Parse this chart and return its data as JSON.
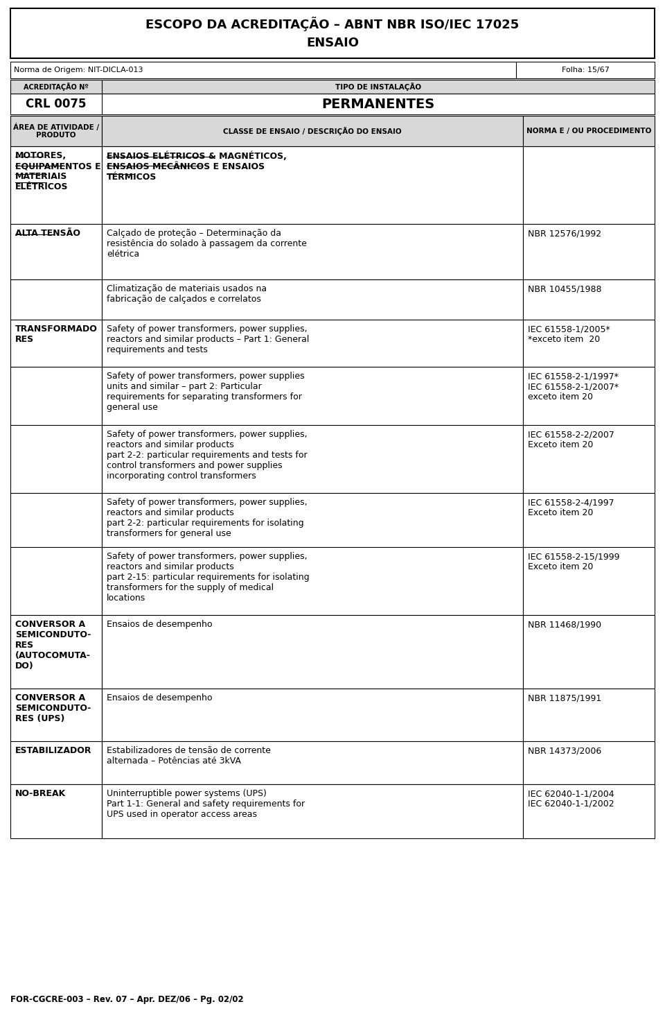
{
  "title_line1": "ESCOPO DA ACREDITAÇÃO – ABNT NBR ISO/IEC 17025",
  "title_line2": "ENSAIO",
  "norma": "Norma de Origem: NIT-DICLA-013",
  "folha": "Folha: 15/67",
  "acreditacao_label": "ACREDITAÇÃO Nº",
  "acreditacao_value": "CRL 0075",
  "tipo_label": "TIPO DE INSTALAÇÃO",
  "tipo_value": "PERMANENTES",
  "col1_header": "ÁREA DE ATIVIDADE /\nPRODUTO",
  "col2_header": "CLASSE DE ENSAIO / DESCRIÇÃO DO ENSAIO",
  "col3_header": "NORMA E / OU PROCEDIMENTO",
  "footer": "FOR-CGCRE-003 – Rev. 07 – Apr. DEZ/06 – Pg. 02/02",
  "bg_color": "#ffffff",
  "header_bg": "#d8d8d8",
  "rows": [
    {
      "col1": "MOTORES,\nEQUIPAMENTOS E\nMATERIAIS\nELÉTRICOS",
      "col1_bold": true,
      "col1_underline": true,
      "col2": "ENSAIOS ELÉTRICOS & MAGNÉTICOS,\nENSAIOS MECÂNICOS E ENSAIOS\nTÉRMICOS",
      "col2_bold": true,
      "col2_underline": true,
      "col3": "",
      "rh": 112
    },
    {
      "col1": "ALTA TENSÃO",
      "col1_bold": true,
      "col1_underline": true,
      "col2": "Calçado de proteção – Determinação da\nresistência do solado à passagem da corrente\nelétrica",
      "col2_bold": false,
      "col3": "NBR 12576/1992",
      "rh": 80
    },
    {
      "col1": "",
      "col2": "Climatização de materiais usados na\nfabricação de calçados e correlatos",
      "col2_bold": false,
      "col3": "NBR 10455/1988",
      "rh": 58
    },
    {
      "col1": "TRANSFORMADO\nRES",
      "col1_bold": true,
      "col1_underline": false,
      "col2": "Safety of power transformers, power supplies,\nreactors and similar products – Part 1: General\nrequirements and tests",
      "col2_bold": false,
      "col3": "IEC 61558-1/2005*\n*exceto item  20",
      "rh": 68
    },
    {
      "col1": "",
      "col2": "Safety of power transformers, power supplies\nunits and similar – part 2: Particular\nrequirements for separating transformers for\ngeneral use",
      "col2_bold": false,
      "col3": "IEC 61558-2-1/1997*\nIEC 61558-2-1/2007*\nexceto item 20",
      "rh": 84
    },
    {
      "col1": "",
      "col2": "Safety of power transformers, power supplies,\nreactors and similar products\npart 2-2: particular requirements and tests for\ncontrol transformers and power supplies\nincorporating control transformers",
      "col2_bold": false,
      "col3": "IEC 61558-2-2/2007\nExceto item 20",
      "rh": 98
    },
    {
      "col1": "",
      "col2": "Safety of power transformers, power supplies,\nreactors and similar products\npart 2-2: particular requirements for isolating\ntransformers for general use",
      "col2_bold": false,
      "col3": "IEC 61558-2-4/1997\nExceto item 20",
      "rh": 78
    },
    {
      "col1": "",
      "col2": "Safety of power transformers, power supplies,\nreactors and similar products\npart 2-15: particular requirements for isolating\ntransformers for the supply of medical\nlocations",
      "col2_bold": false,
      "col3": "IEC 61558-2-15/1999\nExceto item 20",
      "rh": 98
    },
    {
      "col1": "CONVERSOR A\nSEMICONDUTO-\nRES\n(AUTOCOMUTA-\nDO)",
      "col1_bold": true,
      "col1_underline": false,
      "col2": "Ensaios de desempenho",
      "col2_bold": false,
      "col3": "NBR 11468/1990",
      "rh": 106
    },
    {
      "col1": "CONVERSOR A\nSEMICONDUTO-\nRES (UPS)",
      "col1_bold": true,
      "col1_underline": false,
      "col2": "Ensaios de desempenho",
      "col2_bold": false,
      "col3": "NBR 11875/1991",
      "rh": 76
    },
    {
      "col1": "ESTABILIZADOR",
      "col1_bold": true,
      "col1_underline": false,
      "col2": "Estabilizadores de tensão de corrente\nalternada – Potências até 3kVA",
      "col2_bold": false,
      "col3": "NBR 14373/2006",
      "rh": 62
    },
    {
      "col1": "NO-BREAK",
      "col1_bold": true,
      "col1_underline": false,
      "col2": "Uninterruptible power systems (UPS)\nPart 1-1: General and safety requirements for\nUPS used in operator access areas",
      "col2_bold": false,
      "col3": "IEC 62040-1-1/2004\nIEC 62040-1-1/2002",
      "rh": 78
    }
  ]
}
